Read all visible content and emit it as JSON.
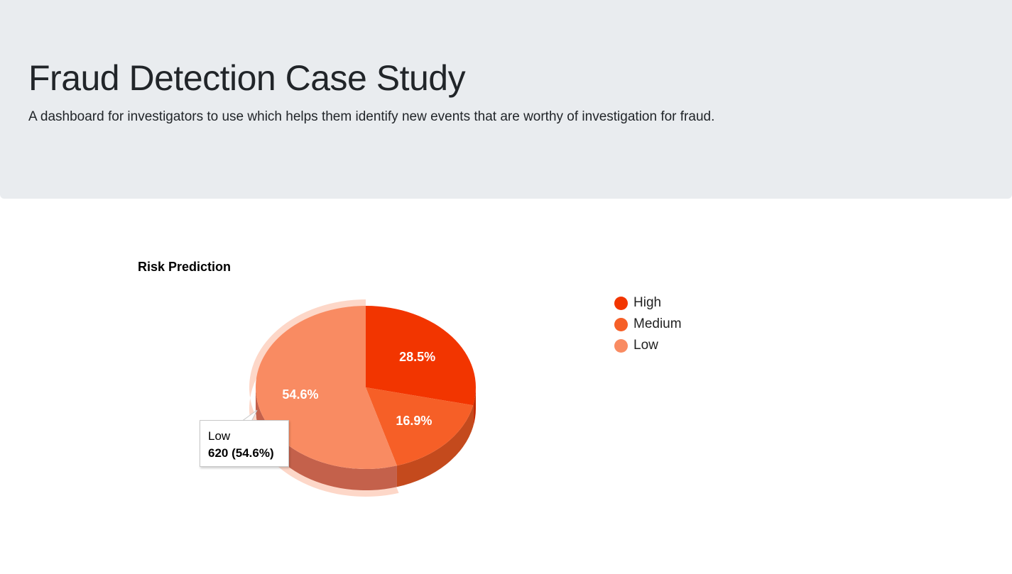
{
  "header": {
    "title": "Fraud Detection Case Study",
    "lead": "A dashboard for investigators to use which helps them identify new events that are worthy of investigation for fraud."
  },
  "chart_data": {
    "type": "pie",
    "title": "Risk Prediction",
    "categories": [
      "High",
      "Medium",
      "Low"
    ],
    "values": [
      324,
      192,
      620
    ],
    "percent_labels": [
      "28.5%",
      "16.9%",
      "54.6%"
    ],
    "colors": [
      "#f23500",
      "#f65f27",
      "#f98b62"
    ],
    "side_colors": [
      "#c42b00",
      "#c44a1d",
      "#c4614b"
    ],
    "is3D": true,
    "legend_position": "right",
    "tooltip": {
      "label": "Low",
      "value_text": "620 (54.6%)"
    }
  }
}
